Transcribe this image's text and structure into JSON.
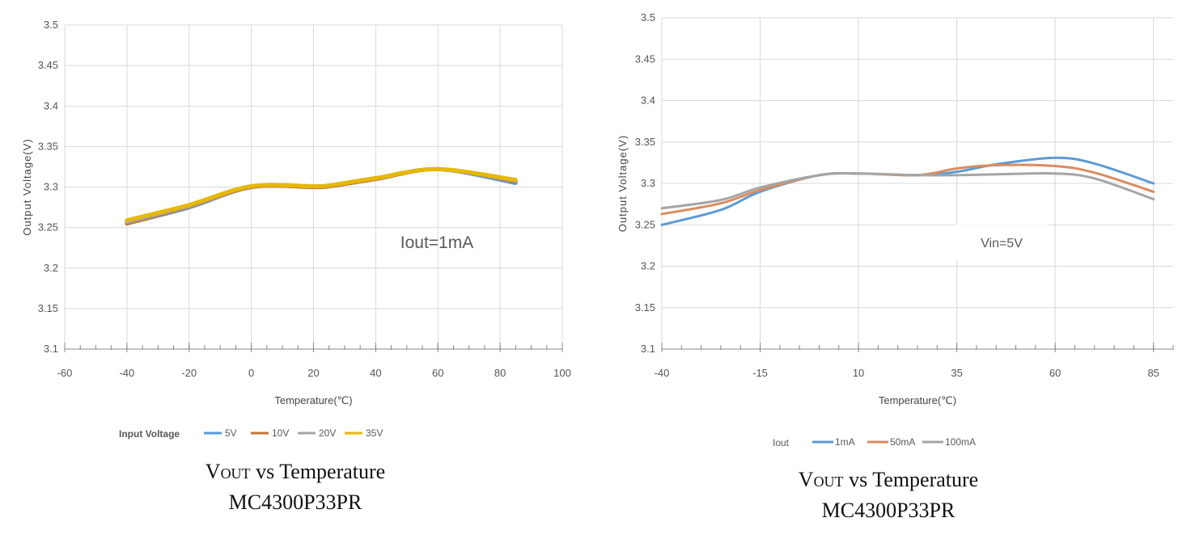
{
  "chart_data": [
    {
      "type": "line",
      "title": "",
      "xlabel": "Temperature(℃)",
      "ylabel": "Output Voltage(V)",
      "xlim": [
        -60,
        100
      ],
      "ylim": [
        3.1,
        3.5
      ],
      "x_ticks": [
        "-60",
        "-40",
        "-20",
        "0",
        "20",
        "40",
        "60",
        "80",
        "100"
      ],
      "y_ticks": [
        "3.1",
        "3.15",
        "3.2",
        "3.25",
        "3.3",
        "3.35",
        "3.4",
        "3.45",
        "3.5"
      ],
      "grid": true,
      "annotation": "Iout=1mA",
      "legend_title": "Input Voltage",
      "legend_position": "bottom",
      "series": [
        {
          "name": "5V",
          "color": "#5b9bd5",
          "x": [
            -40,
            -20,
            0,
            20,
            25,
            40,
            60,
            85
          ],
          "y": [
            3.255,
            3.275,
            3.3,
            3.3,
            3.301,
            3.31,
            3.322,
            3.305
          ]
        },
        {
          "name": "10V",
          "color": "#c0773a",
          "x": [
            -40,
            -20,
            0,
            20,
            25,
            40,
            60,
            85
          ],
          "y": [
            3.255,
            3.276,
            3.3,
            3.3,
            3.301,
            3.31,
            3.322,
            3.307
          ]
        },
        {
          "name": "20V",
          "color": "#a5a5a5",
          "x": [
            -40,
            -20,
            0,
            20,
            25,
            40,
            60,
            85
          ],
          "y": [
            3.257,
            3.277,
            3.301,
            3.301,
            3.302,
            3.311,
            3.322,
            3.308
          ]
        },
        {
          "name": "35V",
          "color": "#e6b800",
          "x": [
            -40,
            -20,
            0,
            20,
            25,
            40,
            60,
            85
          ],
          "y": [
            3.259,
            3.278,
            3.301,
            3.301,
            3.302,
            3.311,
            3.322,
            3.309
          ]
        }
      ],
      "caption": {
        "v": "V",
        "sub": "OUT",
        "rest": " vs Temperature",
        "line2": "MC4300P33PR"
      }
    },
    {
      "type": "line",
      "title": "",
      "xlabel": "Temperature(℃)",
      "ylabel": "Output Voltage(V)",
      "xlim": [
        -40,
        90
      ],
      "ylim": [
        3.1,
        3.5
      ],
      "x_tick_values": [
        -40,
        -15,
        10,
        35,
        60,
        85
      ],
      "x_ticks": [
        "-40",
        "-15",
        "10",
        "35",
        "60",
        "85"
      ],
      "y_ticks": [
        "3.1",
        "3.15",
        "3.2",
        "3.25",
        "3.3",
        "3.35",
        "3.4",
        "3.45",
        "3.5"
      ],
      "grid": true,
      "annotation": "Vin=5V",
      "legend_title": "Iout",
      "legend_position": "bottom",
      "series": [
        {
          "name": "1mA",
          "color": "#5b9bd5",
          "x": [
            -40,
            -25,
            -15,
            0,
            10,
            25,
            35,
            45,
            60,
            70,
            85
          ],
          "y": [
            3.25,
            3.268,
            3.29,
            3.31,
            3.312,
            3.31,
            3.314,
            3.323,
            3.331,
            3.324,
            3.3
          ]
        },
        {
          "name": "50mA",
          "color": "#d98c5f",
          "x": [
            -40,
            -25,
            -15,
            0,
            10,
            25,
            35,
            45,
            60,
            70,
            85
          ],
          "y": [
            3.263,
            3.276,
            3.292,
            3.31,
            3.312,
            3.31,
            3.318,
            3.322,
            3.321,
            3.313,
            3.29
          ]
        },
        {
          "name": "100mA",
          "color": "#a5a5a5",
          "x": [
            -40,
            -25,
            -15,
            0,
            10,
            25,
            35,
            45,
            60,
            70,
            85
          ],
          "y": [
            3.27,
            3.28,
            3.295,
            3.31,
            3.312,
            3.31,
            3.31,
            3.311,
            3.312,
            3.306,
            3.281
          ]
        }
      ],
      "caption": {
        "v": "V",
        "sub": "OUT",
        "rest": " vs Temperature",
        "line2": "MC4300P33PR"
      }
    }
  ]
}
